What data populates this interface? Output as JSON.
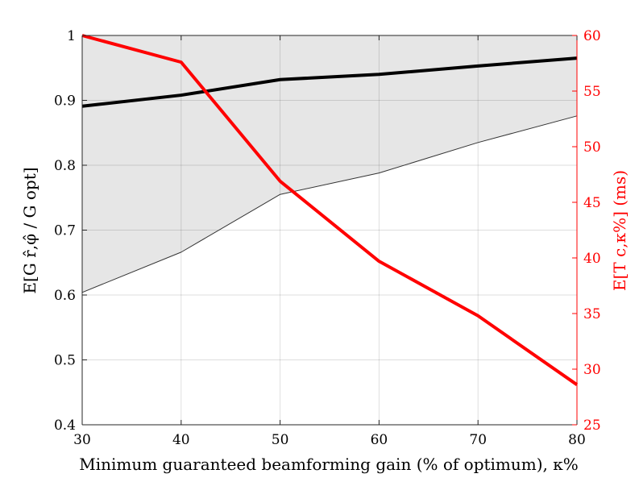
{
  "chart_data": {
    "type": "line",
    "x": [
      30,
      40,
      50,
      60,
      70,
      80
    ],
    "xlabel": "Minimum guaranteed beamforming gain (% of optimum), κ%",
    "xlim": [
      30,
      80
    ],
    "xticks": [
      "30",
      "40",
      "50",
      "60",
      "70",
      "80"
    ],
    "ylabel": "E[G r̂,φ̂ / G opt]",
    "ylim": [
      0.4,
      1
    ],
    "yticks": [
      "0.4",
      "0.5",
      "0.6",
      "0.7",
      "0.8",
      "0.9",
      "1"
    ],
    "y2label": "E[T c,κ%] (ms)",
    "y2lim": [
      25,
      60
    ],
    "y2ticks": [
      "25",
      "30",
      "35",
      "40",
      "45",
      "50",
      "55",
      "60"
    ],
    "grid": true,
    "series": [
      {
        "axis": "left",
        "style": "thick",
        "color": "#000000",
        "values": [
          0.891,
          0.908,
          0.932,
          0.94,
          0.953,
          0.965
        ]
      },
      {
        "axis": "left",
        "style": "thin-lower-bound",
        "color": "#333333",
        "values": [
          0.604,
          0.666,
          0.755,
          0.788,
          0.835,
          0.876
        ]
      },
      {
        "axis": "right",
        "style": "thick",
        "color": "#ff0000",
        "values": [
          60.0,
          57.6,
          46.9,
          39.7,
          34.8,
          28.6
        ]
      }
    ],
    "shaded_region": {
      "color": "#e6e6e6",
      "between": "thin-lower-bound and top of axis"
    }
  }
}
